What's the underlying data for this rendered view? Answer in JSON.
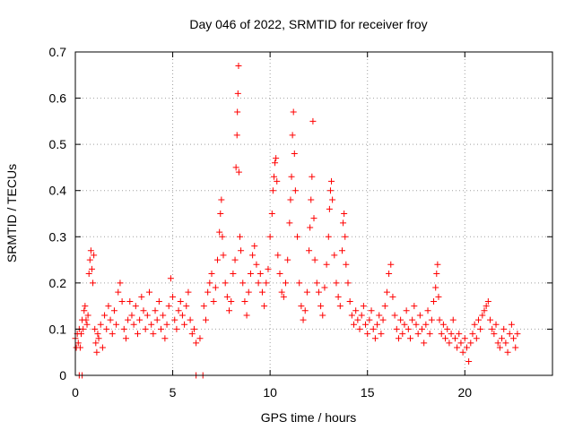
{
  "chart_data": {
    "type": "scatter",
    "title": "Day 046 of 2022, SRMTID for receiver froy",
    "xlabel": "GPS time / hours",
    "ylabel": "SRMTID / TECUs",
    "xlim": [
      0,
      24.5
    ],
    "ylim": [
      0,
      0.7
    ],
    "xticks": [
      0,
      5,
      10,
      15,
      20
    ],
    "xtick_labels": [
      "0",
      "5",
      "10",
      "15",
      "20"
    ],
    "yticks": [
      0,
      0.1,
      0.2,
      0.3,
      0.4,
      0.5,
      0.6,
      0.7
    ],
    "ytick_labels": [
      "0",
      "0.1",
      "0.2",
      "0.3",
      "0.4",
      "0.5",
      "0.6",
      "0.7"
    ],
    "grid": true,
    "marker": "+",
    "color": "#ff0000",
    "series": [
      {
        "name": "SRMTID",
        "points": [
          [
            0.0,
            0.08
          ],
          [
            0.05,
            0.06
          ],
          [
            0.1,
            0.09
          ],
          [
            0.15,
            0.07
          ],
          [
            0.2,
            0.1
          ],
          [
            0.25,
            0.06
          ],
          [
            0.3,
            0.09
          ],
          [
            0.35,
            0.12
          ],
          [
            0.4,
            0.1
          ],
          [
            0.45,
            0.14
          ],
          [
            0.5,
            0.15
          ],
          [
            0.55,
            0.12
          ],
          [
            0.6,
            0.11
          ],
          [
            0.65,
            0.13
          ],
          [
            0.7,
            0.22
          ],
          [
            0.75,
            0.25
          ],
          [
            0.8,
            0.27
          ],
          [
            0.85,
            0.23
          ],
          [
            0.9,
            0.2
          ],
          [
            0.95,
            0.26
          ],
          [
            1.0,
            0.1
          ],
          [
            1.05,
            0.07
          ],
          [
            1.1,
            0.05
          ],
          [
            1.15,
            0.09
          ],
          [
            1.2,
            0.08
          ],
          [
            1.3,
            0.11
          ],
          [
            1.4,
            0.06
          ],
          [
            1.5,
            0.13
          ],
          [
            1.6,
            0.1
          ],
          [
            1.7,
            0.15
          ],
          [
            1.8,
            0.12
          ],
          [
            1.9,
            0.09
          ],
          [
            2.0,
            0.14
          ],
          [
            2.1,
            0.11
          ],
          [
            2.2,
            0.18
          ],
          [
            2.3,
            0.2
          ],
          [
            2.4,
            0.16
          ],
          [
            2.5,
            0.1
          ],
          [
            2.6,
            0.08
          ],
          [
            2.7,
            0.12
          ],
          [
            2.8,
            0.16
          ],
          [
            2.9,
            0.13
          ],
          [
            3.0,
            0.11
          ],
          [
            3.1,
            0.15
          ],
          [
            3.2,
            0.09
          ],
          [
            3.3,
            0.12
          ],
          [
            3.4,
            0.17
          ],
          [
            3.5,
            0.14
          ],
          [
            3.6,
            0.1
          ],
          [
            3.7,
            0.13
          ],
          [
            3.8,
            0.18
          ],
          [
            3.9,
            0.11
          ],
          [
            4.0,
            0.09
          ],
          [
            4.1,
            0.14
          ],
          [
            4.2,
            0.12
          ],
          [
            4.3,
            0.16
          ],
          [
            4.4,
            0.1
          ],
          [
            4.5,
            0.13
          ],
          [
            4.6,
            0.08
          ],
          [
            4.7,
            0.11
          ],
          [
            4.8,
            0.15
          ],
          [
            4.9,
            0.21
          ],
          [
            5.0,
            0.17
          ],
          [
            5.1,
            0.12
          ],
          [
            5.2,
            0.1
          ],
          [
            5.3,
            0.14
          ],
          [
            5.4,
            0.16
          ],
          [
            5.5,
            0.13
          ],
          [
            5.6,
            0.11
          ],
          [
            5.7,
            0.15
          ],
          [
            5.8,
            0.18
          ],
          [
            5.9,
            0.12
          ],
          [
            6.0,
            0.09
          ],
          [
            6.1,
            0.1
          ],
          [
            6.2,
            0.07
          ],
          [
            6.4,
            0.08
          ],
          [
            6.6,
            0.15
          ],
          [
            6.7,
            0.12
          ],
          [
            6.8,
            0.18
          ],
          [
            6.9,
            0.2
          ],
          [
            7.0,
            0.22
          ],
          [
            7.1,
            0.16
          ],
          [
            7.2,
            0.19
          ],
          [
            7.3,
            0.25
          ],
          [
            7.4,
            0.31
          ],
          [
            7.45,
            0.35
          ],
          [
            7.5,
            0.38
          ],
          [
            7.55,
            0.3
          ],
          [
            7.6,
            0.26
          ],
          [
            7.7,
            0.2
          ],
          [
            7.8,
            0.17
          ],
          [
            7.9,
            0.14
          ],
          [
            8.0,
            0.16
          ],
          [
            8.1,
            0.22
          ],
          [
            8.2,
            0.25
          ],
          [
            8.25,
            0.45
          ],
          [
            8.3,
            0.52
          ],
          [
            8.32,
            0.57
          ],
          [
            8.35,
            0.61
          ],
          [
            8.38,
            0.67
          ],
          [
            8.4,
            0.44
          ],
          [
            8.45,
            0.3
          ],
          [
            8.5,
            0.27
          ],
          [
            8.6,
            0.2
          ],
          [
            8.7,
            0.16
          ],
          [
            8.8,
            0.13
          ],
          [
            8.9,
            0.18
          ],
          [
            9.0,
            0.22
          ],
          [
            9.1,
            0.26
          ],
          [
            9.2,
            0.28
          ],
          [
            9.3,
            0.24
          ],
          [
            9.4,
            0.2
          ],
          [
            9.5,
            0.22
          ],
          [
            9.6,
            0.18
          ],
          [
            9.7,
            0.15
          ],
          [
            9.8,
            0.2
          ],
          [
            9.9,
            0.23
          ],
          [
            10.0,
            0.3
          ],
          [
            10.1,
            0.35
          ],
          [
            10.15,
            0.4
          ],
          [
            10.2,
            0.43
          ],
          [
            10.25,
            0.46
          ],
          [
            10.3,
            0.47
          ],
          [
            10.35,
            0.42
          ],
          [
            10.4,
            0.26
          ],
          [
            10.5,
            0.22
          ],
          [
            10.6,
            0.18
          ],
          [
            10.7,
            0.17
          ],
          [
            10.8,
            0.2
          ],
          [
            10.9,
            0.25
          ],
          [
            11.0,
            0.33
          ],
          [
            11.05,
            0.38
          ],
          [
            11.1,
            0.43
          ],
          [
            11.15,
            0.52
          ],
          [
            11.2,
            0.57
          ],
          [
            11.25,
            0.48
          ],
          [
            11.3,
            0.4
          ],
          [
            11.4,
            0.3
          ],
          [
            11.5,
            0.2
          ],
          [
            11.6,
            0.15
          ],
          [
            11.7,
            0.12
          ],
          [
            11.8,
            0.14
          ],
          [
            11.9,
            0.18
          ],
          [
            12.0,
            0.27
          ],
          [
            12.05,
            0.32
          ],
          [
            12.1,
            0.38
          ],
          [
            12.15,
            0.43
          ],
          [
            12.2,
            0.55
          ],
          [
            12.25,
            0.34
          ],
          [
            12.3,
            0.25
          ],
          [
            12.4,
            0.2
          ],
          [
            12.5,
            0.18
          ],
          [
            12.6,
            0.15
          ],
          [
            12.7,
            0.13
          ],
          [
            12.8,
            0.19
          ],
          [
            12.9,
            0.24
          ],
          [
            13.0,
            0.3
          ],
          [
            13.05,
            0.36
          ],
          [
            13.1,
            0.4
          ],
          [
            13.15,
            0.42
          ],
          [
            13.2,
            0.38
          ],
          [
            13.3,
            0.26
          ],
          [
            13.4,
            0.2
          ],
          [
            13.5,
            0.17
          ],
          [
            13.6,
            0.15
          ],
          [
            13.7,
            0.27
          ],
          [
            13.75,
            0.33
          ],
          [
            13.8,
            0.35
          ],
          [
            13.85,
            0.3
          ],
          [
            13.9,
            0.24
          ],
          [
            14.0,
            0.2
          ],
          [
            14.1,
            0.16
          ],
          [
            14.2,
            0.13
          ],
          [
            14.3,
            0.11
          ],
          [
            14.4,
            0.14
          ],
          [
            14.5,
            0.12
          ],
          [
            14.6,
            0.1
          ],
          [
            14.7,
            0.13
          ],
          [
            14.8,
            0.15
          ],
          [
            14.9,
            0.11
          ],
          [
            15.0,
            0.09
          ],
          [
            15.1,
            0.12
          ],
          [
            15.2,
            0.14
          ],
          [
            15.3,
            0.1
          ],
          [
            15.4,
            0.08
          ],
          [
            15.5,
            0.11
          ],
          [
            15.6,
            0.13
          ],
          [
            15.7,
            0.09
          ],
          [
            15.8,
            0.12
          ],
          [
            15.9,
            0.15
          ],
          [
            16.0,
            0.18
          ],
          [
            16.1,
            0.22
          ],
          [
            16.2,
            0.24
          ],
          [
            16.3,
            0.17
          ],
          [
            16.4,
            0.13
          ],
          [
            16.5,
            0.1
          ],
          [
            16.6,
            0.08
          ],
          [
            16.7,
            0.12
          ],
          [
            16.8,
            0.09
          ],
          [
            16.9,
            0.11
          ],
          [
            17.0,
            0.14
          ],
          [
            17.1,
            0.1
          ],
          [
            17.2,
            0.08
          ],
          [
            17.3,
            0.12
          ],
          [
            17.4,
            0.15
          ],
          [
            17.5,
            0.11
          ],
          [
            17.6,
            0.09
          ],
          [
            17.7,
            0.13
          ],
          [
            17.8,
            0.1
          ],
          [
            17.9,
            0.07
          ],
          [
            18.0,
            0.11
          ],
          [
            18.1,
            0.14
          ],
          [
            18.2,
            0.09
          ],
          [
            18.3,
            0.12
          ],
          [
            18.4,
            0.16
          ],
          [
            18.5,
            0.19
          ],
          [
            18.55,
            0.22
          ],
          [
            18.6,
            0.24
          ],
          [
            18.65,
            0.17
          ],
          [
            18.7,
            0.12
          ],
          [
            18.8,
            0.09
          ],
          [
            18.9,
            0.11
          ],
          [
            19.0,
            0.08
          ],
          [
            19.1,
            0.1
          ],
          [
            19.2,
            0.07
          ],
          [
            19.3,
            0.09
          ],
          [
            19.4,
            0.12
          ],
          [
            19.5,
            0.08
          ],
          [
            19.6,
            0.06
          ],
          [
            19.7,
            0.09
          ],
          [
            19.8,
            0.07
          ],
          [
            19.9,
            0.05
          ],
          [
            20.0,
            0.08
          ],
          [
            20.1,
            0.06
          ],
          [
            20.2,
            0.03
          ],
          [
            20.3,
            0.07
          ],
          [
            20.4,
            0.09
          ],
          [
            20.5,
            0.11
          ],
          [
            20.6,
            0.08
          ],
          [
            20.7,
            0.12
          ],
          [
            20.8,
            0.1
          ],
          [
            20.9,
            0.13
          ],
          [
            21.0,
            0.14
          ],
          [
            21.1,
            0.15
          ],
          [
            21.2,
            0.16
          ],
          [
            21.3,
            0.12
          ],
          [
            21.4,
            0.1
          ],
          [
            21.5,
            0.09
          ],
          [
            21.6,
            0.11
          ],
          [
            21.7,
            0.07
          ],
          [
            21.8,
            0.06
          ],
          [
            21.9,
            0.08
          ],
          [
            22.0,
            0.1
          ],
          [
            22.1,
            0.07
          ],
          [
            22.2,
            0.05
          ],
          [
            22.3,
            0.09
          ],
          [
            22.4,
            0.11
          ],
          [
            22.5,
            0.08
          ],
          [
            22.6,
            0.06
          ],
          [
            22.7,
            0.09
          ],
          [
            0.2,
            0.0
          ],
          [
            0.35,
            0.0
          ],
          [
            6.2,
            0.0
          ],
          [
            6.55,
            0.0
          ]
        ]
      }
    ]
  }
}
